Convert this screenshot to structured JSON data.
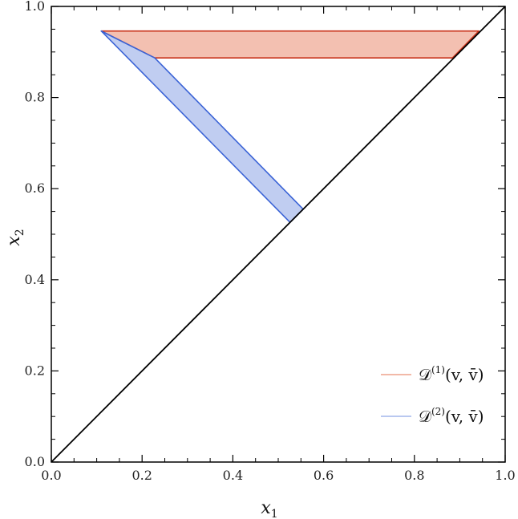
{
  "chart_data": {
    "type": "area",
    "xlabel": "x",
    "xlabel_sub": "1",
    "ylabel": "x",
    "ylabel_sub": "2",
    "xlim": [
      0.0,
      1.0
    ],
    "ylim": [
      0.0,
      1.0
    ],
    "x_ticks": [
      "0.0",
      "0.2",
      "0.4",
      "0.6",
      "0.8",
      "1.0"
    ],
    "y_ticks": [
      "0.0",
      "0.2",
      "0.4",
      "0.6",
      "0.8",
      "1.0"
    ],
    "grid": false,
    "legend_position": "bottom-right",
    "diagonal_line": {
      "points": [
        [
          0.0,
          0.0
        ],
        [
          1.0,
          1.0
        ]
      ],
      "color": "#000000"
    },
    "series": [
      {
        "name": "𝒟⁽¹⁾(v, v̄)",
        "legend_main": "𝒟",
        "legend_sup": "(1)",
        "legend_args": "(v, v̄)",
        "fill": "#f2b9a8",
        "stroke": "#c8321a",
        "polygon": [
          [
            0.11,
            0.946
          ],
          [
            0.942,
            0.946
          ],
          [
            0.884,
            0.887
          ],
          [
            0.228,
            0.887
          ]
        ]
      },
      {
        "name": "𝒟⁽²⁾(v, v̄)",
        "legend_main": "𝒟",
        "legend_sup": "(2)",
        "legend_args": "(v, v̄)",
        "fill": "#b9c8f0",
        "stroke": "#3a63d6",
        "polygon": [
          [
            0.11,
            0.946
          ],
          [
            0.228,
            0.887
          ],
          [
            0.555,
            0.555
          ],
          [
            0.526,
            0.526
          ]
        ]
      }
    ]
  }
}
